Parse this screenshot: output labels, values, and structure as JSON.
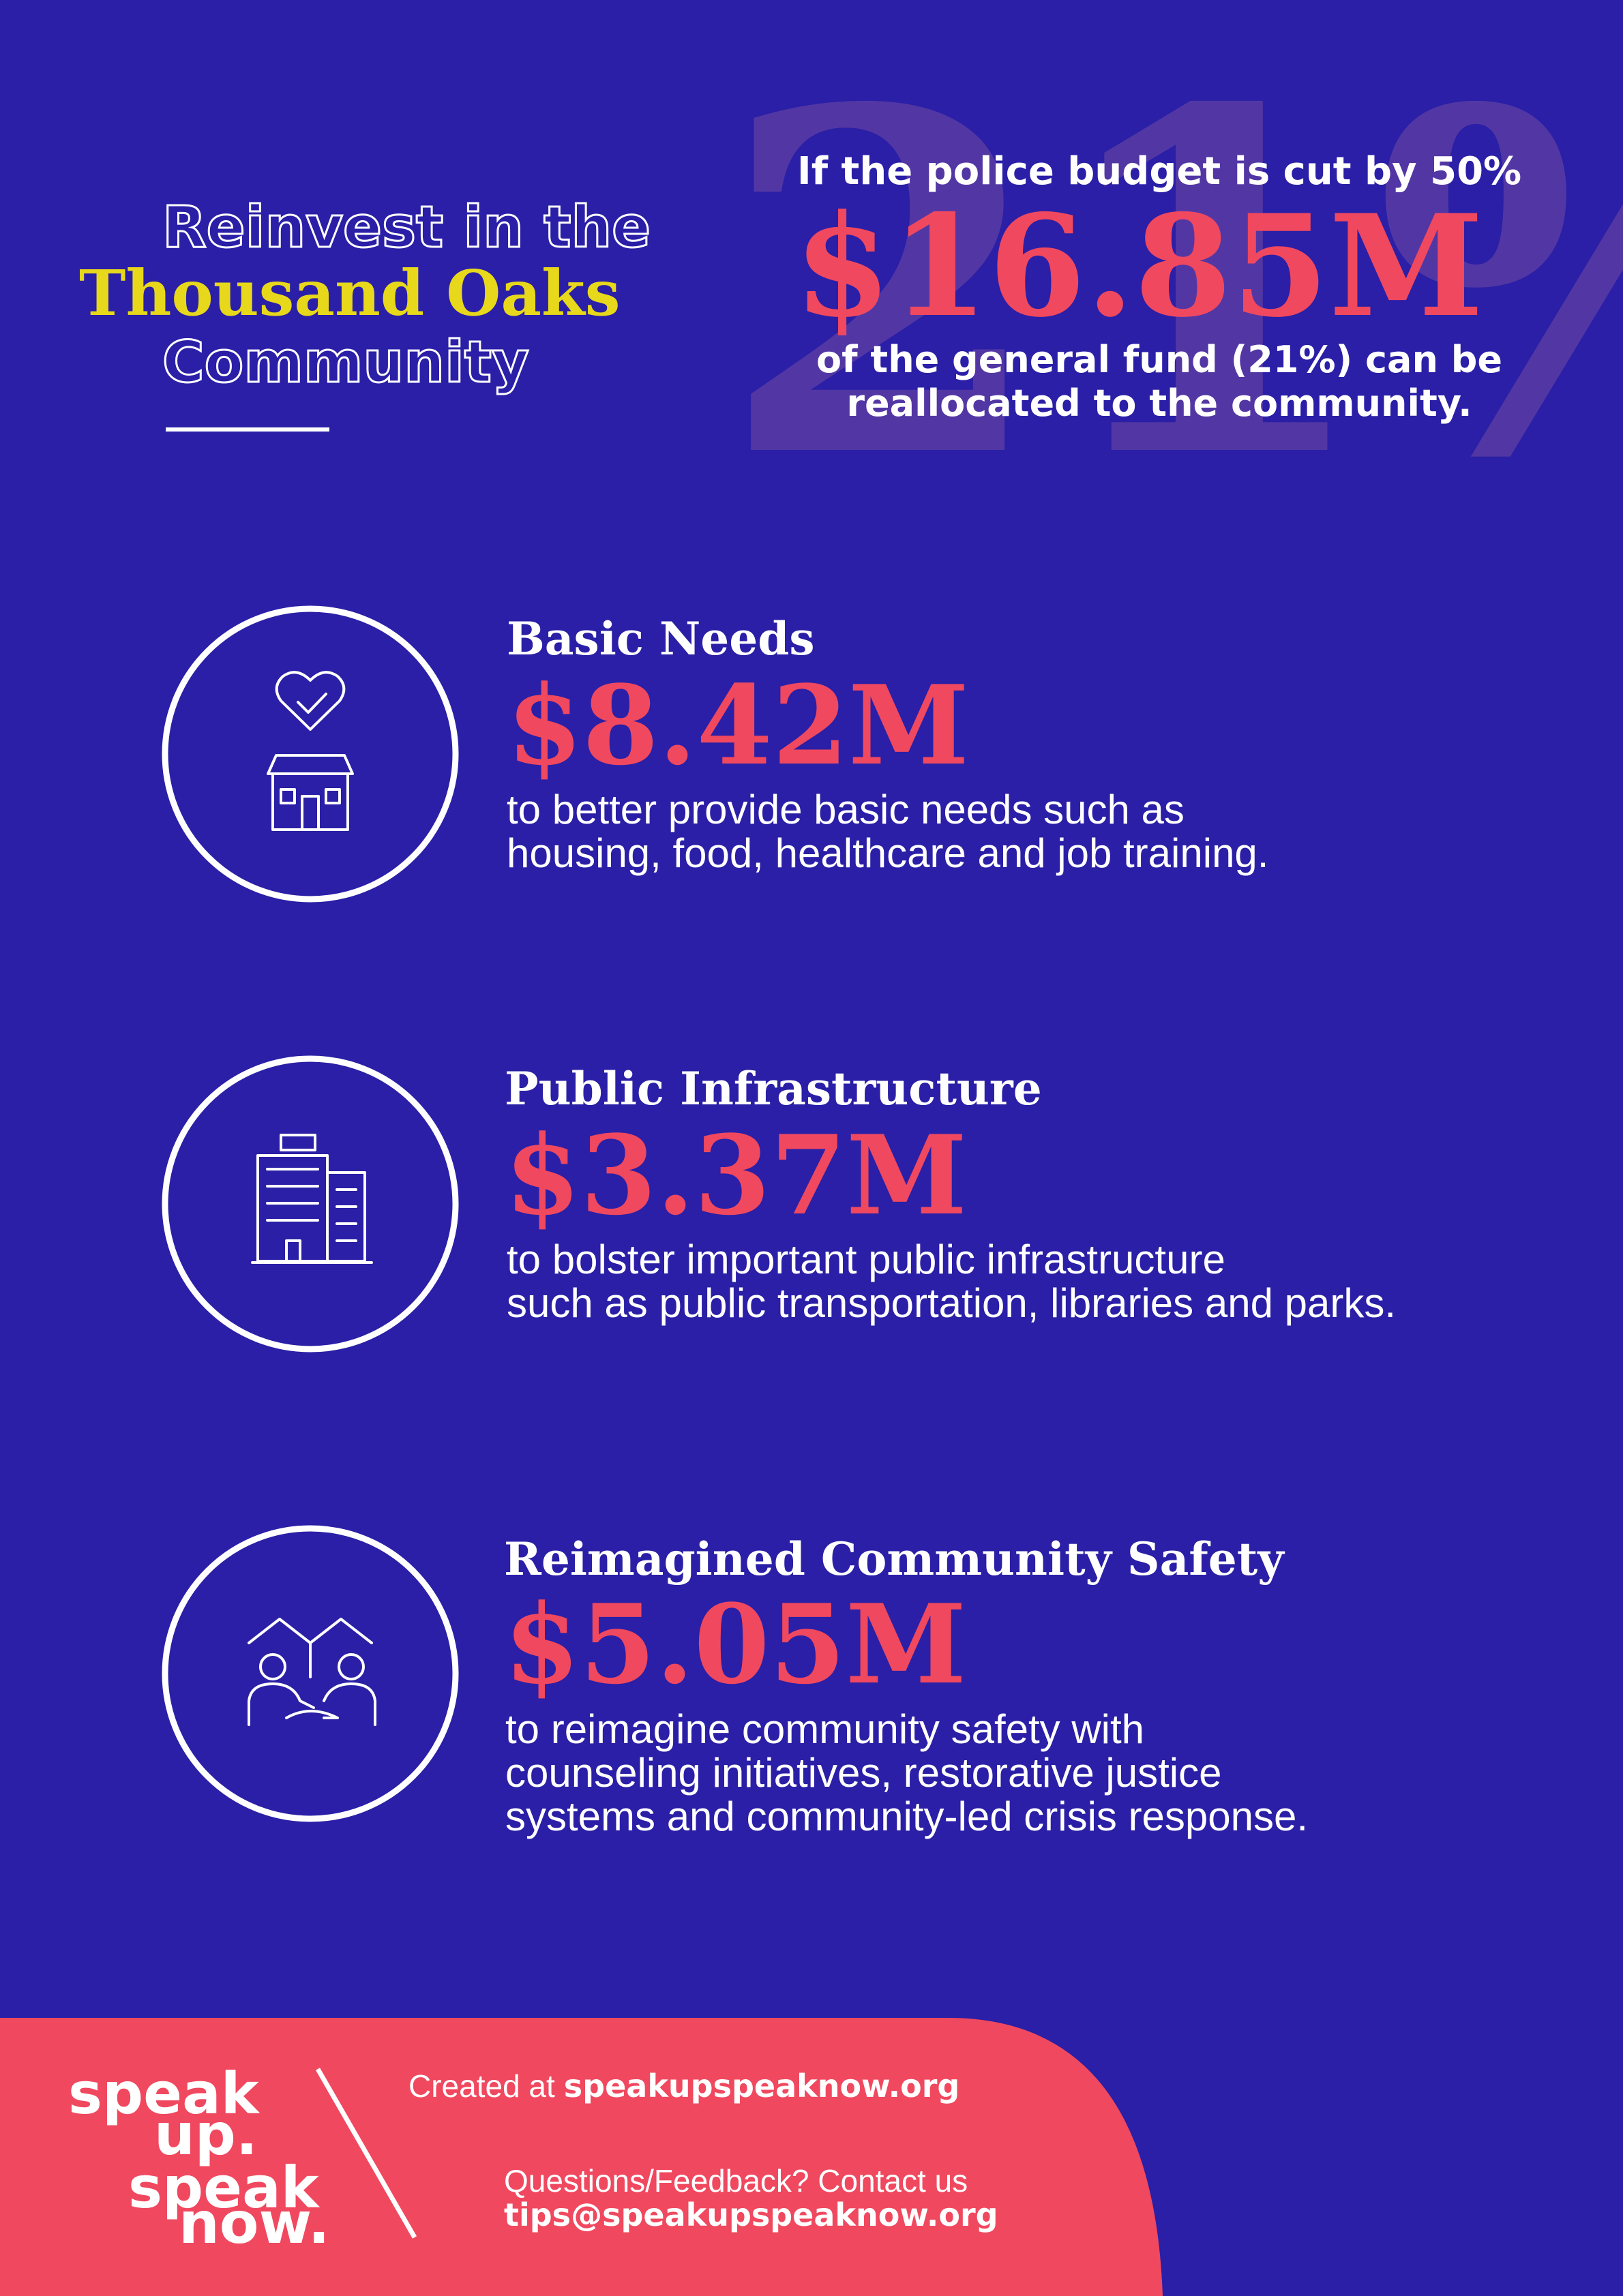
{
  "header": {
    "title_lines": [
      "Reinvest in the",
      "Thousand Oaks",
      "Community"
    ]
  },
  "headline": {
    "watermark": "21%",
    "intro": "If the police budget is cut by 50%",
    "amount": "$16.85M",
    "description_lines": [
      "of the general fund (21%) can be",
      "reallocated to the community."
    ]
  },
  "items": [
    {
      "title": "Basic Needs",
      "amount": "$8.42M",
      "description_lines": [
        "to better provide basic needs such as",
        "housing, food, healthcare and job training."
      ]
    },
    {
      "title": "Public Infrastructure",
      "amount": "$3.37M",
      "description_lines": [
        "to bolster important public infrastructure",
        "such as public transportation, libraries and parks."
      ]
    },
    {
      "title": "Reimagined Community Safety",
      "amount": "$5.05M",
      "description_lines": [
        "to reimagine community safety with",
        "counseling initiatives, restorative justice",
        "systems and community-led crisis response."
      ]
    }
  ],
  "footer": {
    "logo_lines": [
      "speak",
      "up.",
      "speak",
      "now."
    ],
    "created_prefix": "Created at",
    "created_link": "speakupspeaknow.org",
    "contact_label": "Questions/Feedback? Contact us",
    "contact_email": "tips@speakupspeaknow.org"
  }
}
